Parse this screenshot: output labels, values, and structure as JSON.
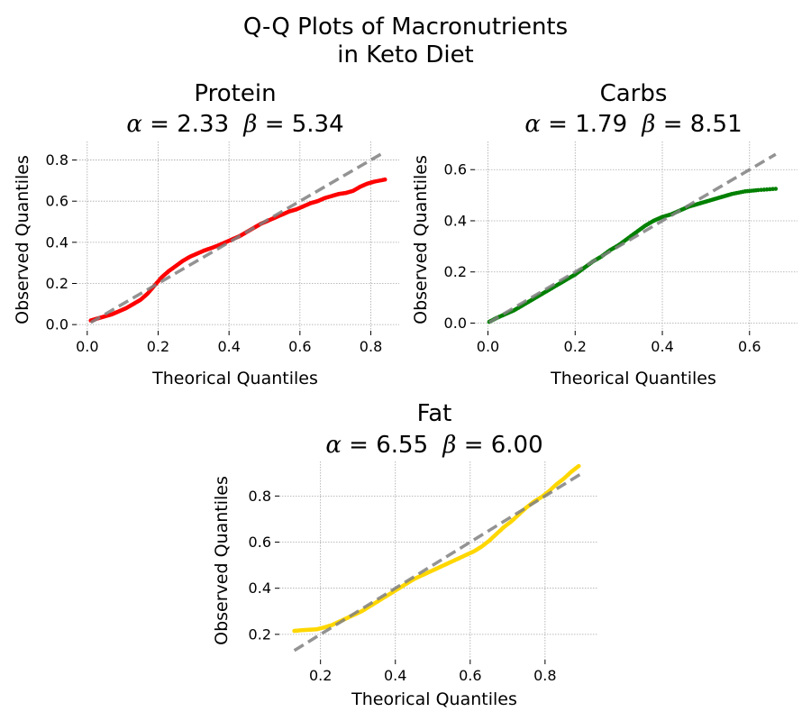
{
  "chart_data": {
    "suptitle_line1": "Q-Q Plots of Macronutrients",
    "suptitle_line2": "in Keto Diet",
    "subplots": [
      {
        "id": "protein",
        "type": "scatter",
        "title": "Protein",
        "alpha_label": "α",
        "alpha_text": "=  2.33",
        "beta_label": "β",
        "beta_text": "= 5.34",
        "xlabel": "Theorical Quantiles",
        "ylabel": "Observed Quantiles",
        "xlim": [
          -0.03,
          0.88
        ],
        "ylim": [
          -0.03,
          0.89
        ],
        "xticks": [
          0.0,
          0.2,
          0.4,
          0.6,
          0.8
        ],
        "xtick_labels": [
          "0.0",
          "0.2",
          "0.4",
          "0.6",
          "0.8"
        ],
        "yticks": [
          0.0,
          0.2,
          0.4,
          0.6,
          0.8
        ],
        "ytick_labels": [
          "0.0",
          "0.2",
          "0.4",
          "0.6",
          "0.8"
        ],
        "grid": true,
        "marker_color": "#ff0000",
        "reference_line": {
          "x": [
            0.01,
            0.84
          ],
          "y": [
            0.01,
            0.84
          ],
          "color": "#808080",
          "style": "dashed"
        },
        "points": {
          "x": [
            0.01,
            0.03,
            0.05,
            0.07,
            0.09,
            0.11,
            0.13,
            0.15,
            0.17,
            0.19,
            0.21,
            0.23,
            0.25,
            0.27,
            0.29,
            0.31,
            0.33,
            0.35,
            0.37,
            0.39,
            0.41,
            0.43,
            0.45,
            0.47,
            0.49,
            0.51,
            0.53,
            0.55,
            0.57,
            0.59,
            0.61,
            0.63,
            0.65,
            0.67,
            0.69,
            0.71,
            0.73,
            0.75,
            0.77,
            0.79,
            0.81,
            0.84
          ],
          "y": [
            0.02,
            0.03,
            0.04,
            0.05,
            0.065,
            0.08,
            0.1,
            0.12,
            0.15,
            0.19,
            0.23,
            0.26,
            0.285,
            0.31,
            0.33,
            0.345,
            0.36,
            0.372,
            0.385,
            0.4,
            0.415,
            0.43,
            0.45,
            0.47,
            0.49,
            0.505,
            0.52,
            0.535,
            0.55,
            0.56,
            0.575,
            0.59,
            0.6,
            0.615,
            0.625,
            0.635,
            0.64,
            0.65,
            0.67,
            0.685,
            0.695,
            0.705
          ]
        }
      },
      {
        "id": "carbs",
        "type": "scatter",
        "title": "Carbs",
        "alpha_label": "α",
        "alpha_text": "=  1.79",
        "beta_label": "β",
        "beta_text": "= 8.51",
        "xlabel": "Theorical Quantiles",
        "ylabel": "Observed Quantiles",
        "xlim": [
          -0.03,
          0.71
        ],
        "ylim": [
          -0.03,
          0.71
        ],
        "xticks": [
          0.0,
          0.2,
          0.4,
          0.6
        ],
        "xtick_labels": [
          "0.0",
          "0.2",
          "0.4",
          "0.6"
        ],
        "yticks": [
          0.0,
          0.2,
          0.4,
          0.6
        ],
        "ytick_labels": [
          "0.0",
          "0.2",
          "0.4",
          "0.6"
        ],
        "grid": true,
        "marker_color": "#008000",
        "reference_line": {
          "x": [
            0.003,
            0.66
          ],
          "y": [
            0.003,
            0.66
          ],
          "color": "#808080",
          "style": "dashed"
        },
        "points": {
          "x": [
            0.003,
            0.02,
            0.04,
            0.06,
            0.08,
            0.1,
            0.12,
            0.14,
            0.16,
            0.18,
            0.2,
            0.22,
            0.24,
            0.26,
            0.28,
            0.3,
            0.32,
            0.34,
            0.36,
            0.38,
            0.4,
            0.42,
            0.44,
            0.46,
            0.48,
            0.5,
            0.52,
            0.54,
            0.56,
            0.59,
            0.62,
            0.66
          ],
          "y": [
            0.005,
            0.02,
            0.035,
            0.05,
            0.07,
            0.09,
            0.11,
            0.13,
            0.15,
            0.17,
            0.19,
            0.215,
            0.24,
            0.26,
            0.285,
            0.305,
            0.33,
            0.355,
            0.38,
            0.4,
            0.415,
            0.425,
            0.44,
            0.455,
            0.465,
            0.475,
            0.485,
            0.495,
            0.505,
            0.515,
            0.52,
            0.525
          ]
        }
      },
      {
        "id": "fat",
        "type": "scatter",
        "title": "Fat",
        "alpha_label": "α",
        "alpha_text": "=  6.55",
        "beta_label": "β",
        "beta_text": "= 6.00",
        "xlabel": "Theorical Quantiles",
        "ylabel": "Observed Quantiles",
        "xlim": [
          0.09,
          0.94
        ],
        "ylim": [
          0.09,
          0.95
        ],
        "xticks": [
          0.2,
          0.4,
          0.6,
          0.8
        ],
        "xtick_labels": [
          "0.2",
          "0.4",
          "0.6",
          "0.8"
        ],
        "yticks": [
          0.2,
          0.4,
          0.6,
          0.8
        ],
        "ytick_labels": [
          "0.2",
          "0.4",
          "0.6",
          "0.8"
        ],
        "grid": true,
        "marker_color": "#ffd700",
        "reference_line": {
          "x": [
            0.13,
            0.9
          ],
          "y": [
            0.13,
            0.9
          ],
          "color": "#808080",
          "style": "dashed"
        },
        "points": {
          "x": [
            0.13,
            0.15,
            0.17,
            0.19,
            0.21,
            0.23,
            0.25,
            0.27,
            0.29,
            0.31,
            0.33,
            0.35,
            0.37,
            0.39,
            0.41,
            0.43,
            0.45,
            0.47,
            0.49,
            0.51,
            0.53,
            0.55,
            0.57,
            0.59,
            0.61,
            0.63,
            0.65,
            0.67,
            0.69,
            0.71,
            0.73,
            0.75,
            0.77,
            0.79,
            0.81,
            0.83,
            0.85,
            0.87,
            0.89
          ],
          "y": [
            0.215,
            0.218,
            0.22,
            0.222,
            0.23,
            0.24,
            0.255,
            0.27,
            0.285,
            0.3,
            0.32,
            0.34,
            0.36,
            0.38,
            0.4,
            0.42,
            0.44,
            0.455,
            0.47,
            0.485,
            0.5,
            0.515,
            0.53,
            0.545,
            0.56,
            0.58,
            0.605,
            0.635,
            0.665,
            0.69,
            0.72,
            0.75,
            0.775,
            0.795,
            0.82,
            0.85,
            0.875,
            0.905,
            0.93
          ]
        }
      }
    ]
  }
}
